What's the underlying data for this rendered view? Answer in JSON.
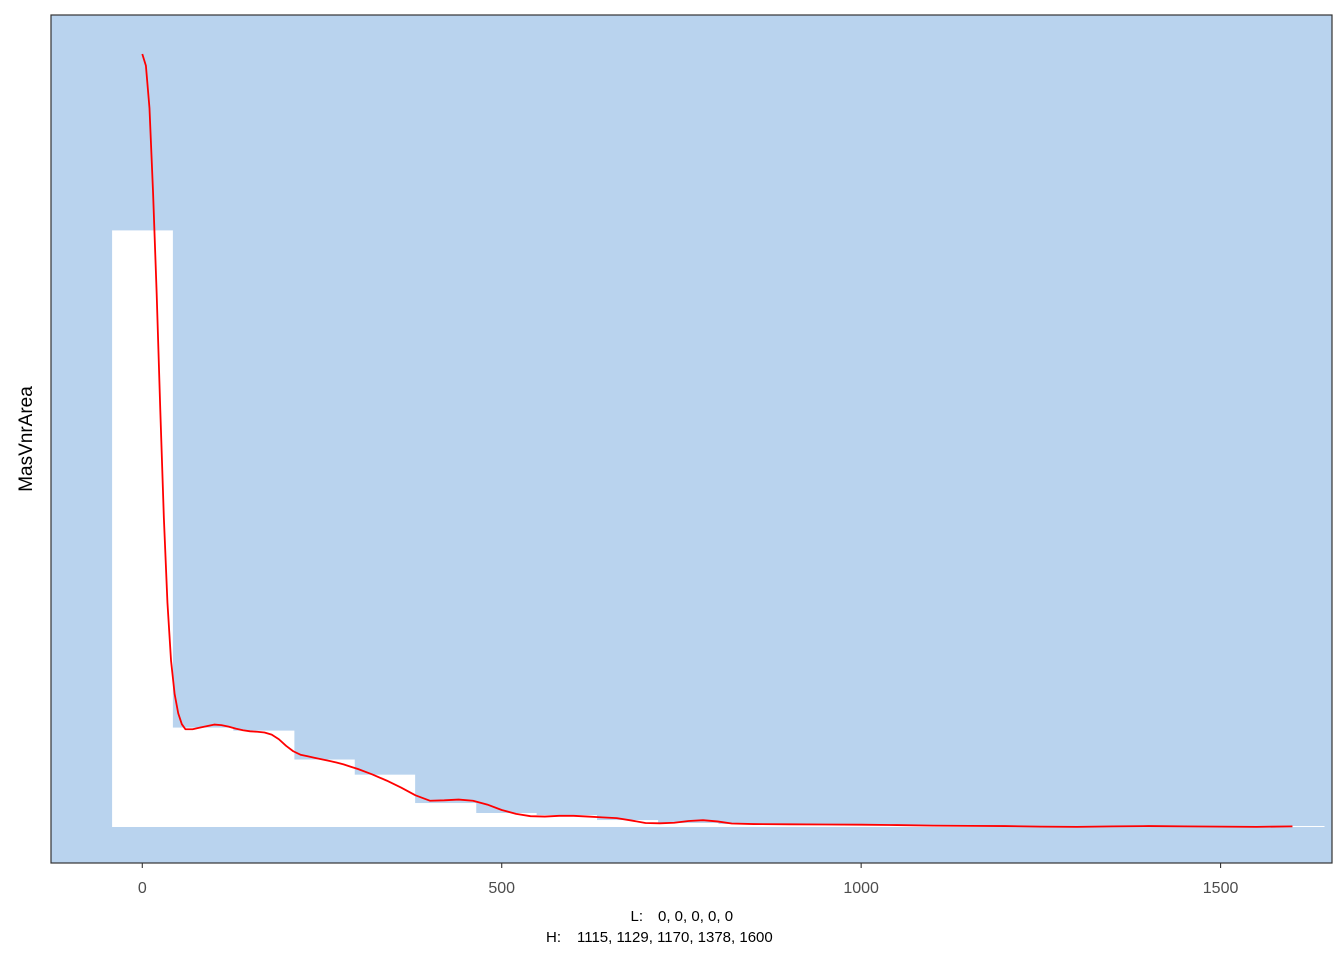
{
  "chart_data": {
    "type": "bar",
    "subtype": "histogram-with-density",
    "title": "",
    "xlabel": "",
    "ylabel": "MasVnrArea",
    "xlim": [
      -127,
      1655
    ],
    "ylim": [
      0,
      1
    ],
    "x_ticks": [
      0,
      500,
      1000,
      1500
    ],
    "grid": false,
    "colors": {
      "panel_background": "#b9d3ee",
      "bars": "#ffffff",
      "density_line": "#ff0000",
      "panel_border": "#333333"
    },
    "bins": {
      "edges": [
        -42,
        42,
        126,
        211,
        295,
        379,
        464,
        548,
        632,
        717,
        801,
        885,
        970,
        1054,
        1138,
        1222,
        1307,
        1391,
        1475,
        1560,
        1644
      ],
      "heights": [
        0.7718,
        0.1286,
        0.1247,
        0.0873,
        0.0677,
        0.031,
        0.0181,
        0.0155,
        0.009,
        0.0052,
        0.0039,
        0.0026,
        0.0026,
        0.0026,
        0.0013,
        0.0013,
        0.0013,
        0.0013,
        0.0013,
        0.0013
      ]
    },
    "density": {
      "x": [
        0,
        5,
        10,
        15,
        20,
        25,
        30,
        35,
        40,
        45,
        50,
        55,
        60,
        70,
        80,
        90,
        100,
        110,
        120,
        130,
        140,
        150,
        160,
        170,
        180,
        190,
        200,
        210,
        220,
        230,
        240,
        250,
        260,
        270,
        280,
        290,
        300,
        320,
        340,
        360,
        380,
        400,
        420,
        440,
        460,
        480,
        500,
        520,
        540,
        560,
        580,
        600,
        620,
        640,
        660,
        680,
        700,
        720,
        740,
        760,
        780,
        800,
        820,
        850,
        900,
        950,
        1000,
        1050,
        1100,
        1150,
        1200,
        1250,
        1300,
        1350,
        1400,
        1450,
        1500,
        1550,
        1600
      ],
      "y": [
        1.0,
        0.985,
        0.93,
        0.82,
        0.69,
        0.54,
        0.4,
        0.29,
        0.215,
        0.172,
        0.147,
        0.133,
        0.1265,
        0.1265,
        0.1285,
        0.1305,
        0.1325,
        0.1318,
        0.1298,
        0.1272,
        0.1252,
        0.1238,
        0.1232,
        0.1222,
        0.1195,
        0.1135,
        0.105,
        0.098,
        0.0935,
        0.0915,
        0.0895,
        0.0875,
        0.0855,
        0.0835,
        0.081,
        0.078,
        0.075,
        0.068,
        0.06,
        0.051,
        0.041,
        0.034,
        0.0345,
        0.0355,
        0.034,
        0.029,
        0.022,
        0.017,
        0.014,
        0.0135,
        0.0145,
        0.0145,
        0.0135,
        0.0125,
        0.0115,
        0.0085,
        0.0052,
        0.0048,
        0.0055,
        0.0078,
        0.0088,
        0.0072,
        0.0045,
        0.0038,
        0.0035,
        0.0032,
        0.003,
        0.0025,
        0.0018,
        0.0015,
        0.0012,
        0.0005,
        0.0002,
        0.0008,
        0.0012,
        0.0008,
        0.0005,
        0.0002,
        0.0008
      ]
    },
    "notes": [
      {
        "prefix": "L:",
        "text": "0, 0, 0, 0, 0"
      },
      {
        "prefix": "H:",
        "text": "1115, 1129, 1170, 1378, 1600"
      }
    ]
  }
}
